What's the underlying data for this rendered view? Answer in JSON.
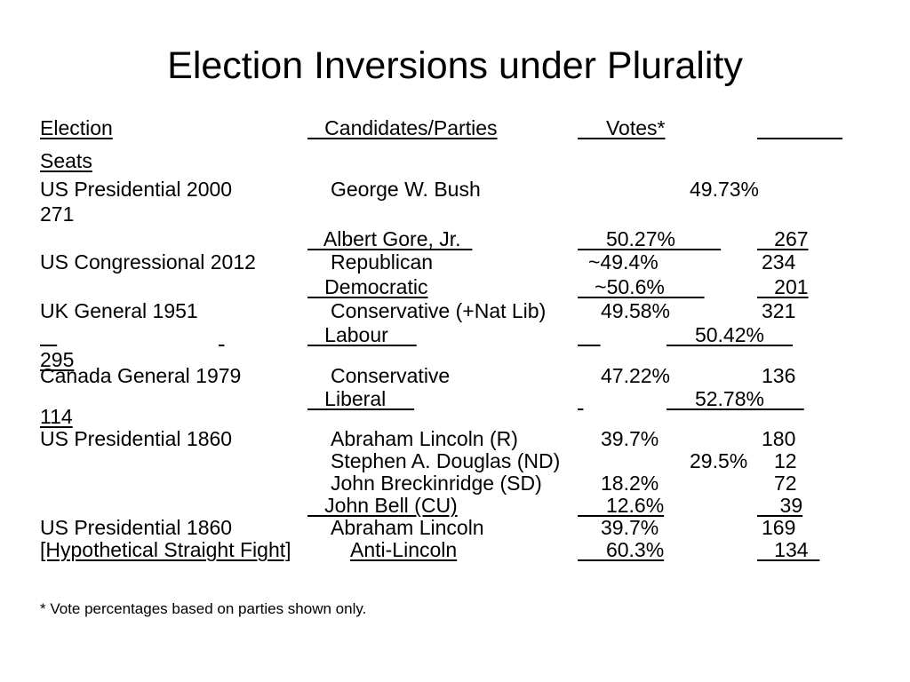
{
  "slide": {
    "title": "Election Inversions under Plurality",
    "footnote": "* Vote percentages based on parties shown only."
  },
  "header": {
    "election": "Election",
    "candidates": "   Candidates/Parties",
    "votes": "     Votes*",
    "blank_underline": "               ",
    "seats": "Seats"
  },
  "rows": [
    {
      "election": "US Presidential 2000",
      "candidate": "George W. Bush",
      "votes": "49.73%",
      "seats": "271"
    },
    {
      "candidate": "   Albert Gore, Jr.  ",
      "votes": "     50.27%        ",
      "seats": "   267"
    },
    {
      "election": "US Congressional 2012",
      "candidate": "Republican",
      "votes": "~49.4%",
      "seats": "234"
    },
    {
      "candidate": "   Democratic",
      "votes": "   ~50.6%       ",
      "seats": "   201"
    },
    {
      "election": "UK General 1951",
      "candidate": "Conservative (+Nat Lib)",
      "votes": "49.58%",
      "seats": "321"
    },
    {
      "election_underline_left": "   ",
      "election_underline_right": " ",
      "candidate": "   Labour     ",
      "votes_blank": "    ",
      "votes": "     50.42%     ",
      "seats": "295"
    },
    {
      "election": "Canada General 1979",
      "candidate": "Conservative",
      "votes": "47.22%",
      "seats": "136"
    },
    {
      "candidate": "   Liberal     ",
      "votes_blank": " ",
      "votes": "     52.78%       ",
      "seats": "114"
    },
    {
      "election": "US Presidential 1860",
      "candidate": "Abraham Lincoln (R)",
      "votes": "39.7%",
      "seats": "180"
    },
    {
      "candidate": "Stephen A. Douglas (ND)",
      "votes": "29.5%",
      "seats": "12"
    },
    {
      "candidate": "John Breckinridge (SD)",
      "votes": "18.2%",
      "seats": "72"
    },
    {
      "candidate": "   John Bell (CU)",
      "votes": "     12.6%",
      "seats": "    39"
    },
    {
      "election": "US Presidential 1860",
      "candidate": "Abraham Lincoln",
      "votes": "39.7%",
      "seats": "169"
    },
    {
      "election": "[Hypothetical Straight Fight]",
      "candidate": "Anti-Lincoln",
      "votes": "     60.3%",
      "seats": "   134  "
    }
  ]
}
